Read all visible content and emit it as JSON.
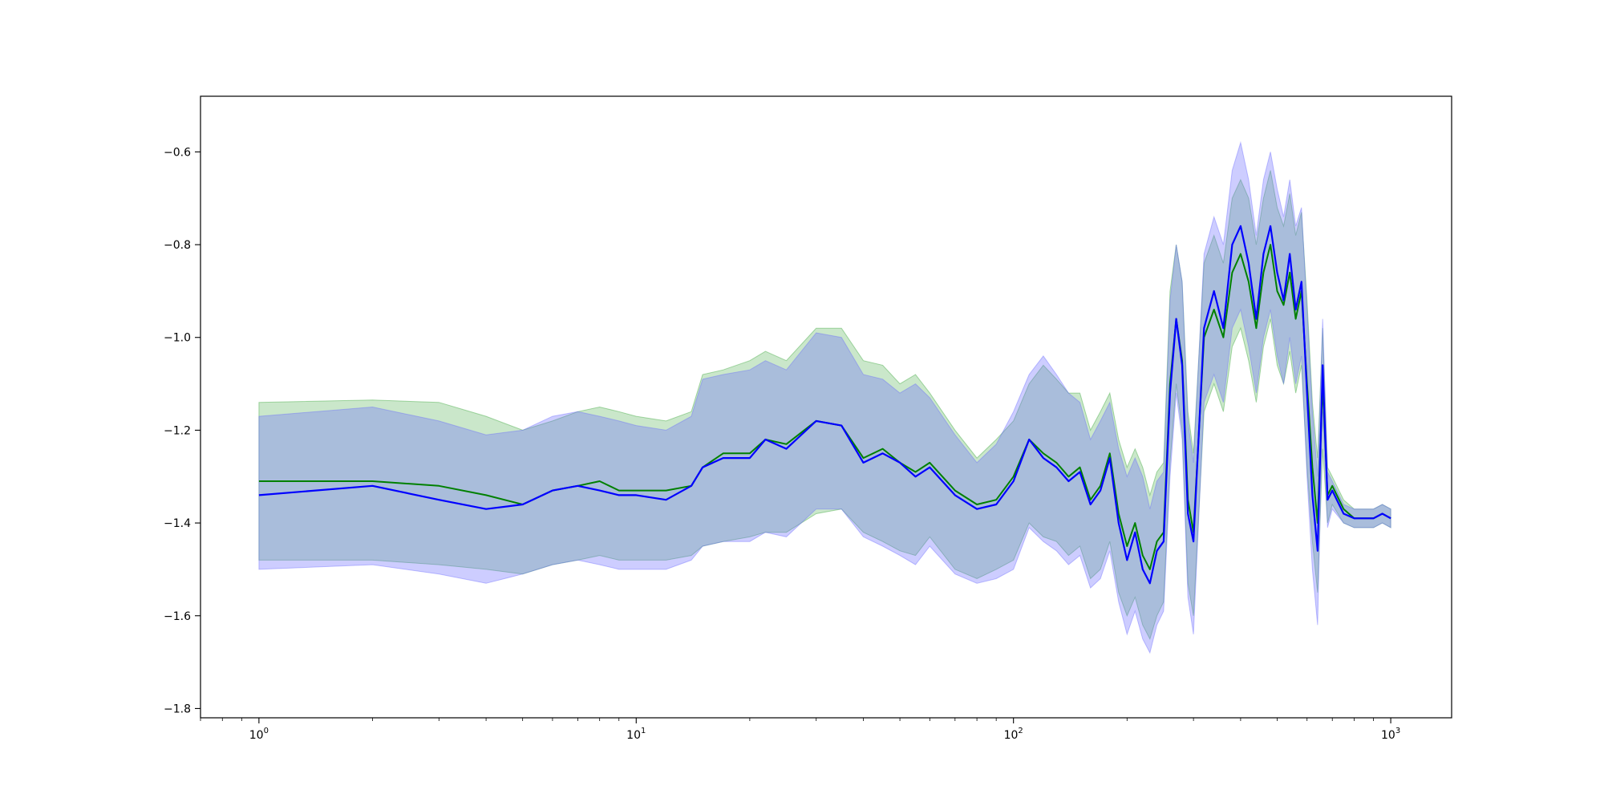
{
  "chart_data": {
    "type": "line",
    "title": "",
    "xlabel": "",
    "ylabel": "",
    "xscale": "log",
    "xlim": [
      0.7,
      1450
    ],
    "ylim": [
      -1.82,
      -0.48
    ],
    "grid": false,
    "legend": "none",
    "x_ticks": [
      {
        "value": 1,
        "base": "10",
        "exp": "0"
      },
      {
        "value": 10,
        "base": "10",
        "exp": "1"
      },
      {
        "value": 100,
        "base": "10",
        "exp": "2"
      },
      {
        "value": 1000,
        "base": "10",
        "exp": "3"
      }
    ],
    "y_ticks": [
      {
        "value": -0.6,
        "label": "−0.6"
      },
      {
        "value": -0.8,
        "label": "−0.8"
      },
      {
        "value": -1.0,
        "label": "−1.0"
      },
      {
        "value": -1.2,
        "label": "−1.2"
      },
      {
        "value": -1.4,
        "label": "−1.4"
      },
      {
        "value": -1.6,
        "label": "−1.6"
      },
      {
        "value": -1.8,
        "label": "−1.8"
      }
    ],
    "x": [
      1,
      2,
      3,
      4,
      5,
      6,
      7,
      8,
      9,
      10,
      12,
      14,
      15,
      17,
      20,
      22,
      25,
      30,
      35,
      40,
      45,
      50,
      55,
      60,
      70,
      80,
      90,
      100,
      110,
      120,
      130,
      140,
      150,
      160,
      170,
      180,
      190,
      200,
      210,
      220,
      230,
      240,
      250,
      260,
      270,
      280,
      290,
      300,
      320,
      340,
      360,
      380,
      400,
      420,
      440,
      460,
      480,
      500,
      520,
      540,
      560,
      580,
      600,
      620,
      640,
      660,
      680,
      700,
      750,
      800,
      850,
      900,
      950,
      1000
    ],
    "series": [
      {
        "color": "#008000",
        "band_color": "#2ca02c",
        "values": [
          -1.31,
          -1.31,
          -1.32,
          -1.34,
          -1.36,
          -1.33,
          -1.32,
          -1.31,
          -1.33,
          -1.33,
          -1.33,
          -1.32,
          -1.28,
          -1.25,
          -1.25,
          -1.22,
          -1.23,
          -1.18,
          -1.19,
          -1.26,
          -1.24,
          -1.27,
          -1.29,
          -1.27,
          -1.33,
          -1.36,
          -1.35,
          -1.3,
          -1.22,
          -1.25,
          -1.27,
          -1.3,
          -1.28,
          -1.35,
          -1.32,
          -1.25,
          -1.38,
          -1.45,
          -1.4,
          -1.47,
          -1.5,
          -1.44,
          -1.42,
          -1.1,
          -0.96,
          -1.05,
          -1.35,
          -1.42,
          -1.0,
          -0.94,
          -1.0,
          -0.86,
          -0.82,
          -0.88,
          -0.98,
          -0.86,
          -0.8,
          -0.9,
          -0.93,
          -0.86,
          -0.96,
          -0.9,
          -1.1,
          -1.28,
          -1.4,
          -1.1,
          -1.34,
          -1.32,
          -1.37,
          -1.39,
          -1.39,
          -1.39,
          -1.38,
          -1.39
        ],
        "upper": [
          -1.14,
          -1.135,
          -1.14,
          -1.17,
          -1.2,
          -1.18,
          -1.16,
          -1.15,
          -1.16,
          -1.17,
          -1.18,
          -1.16,
          -1.08,
          -1.07,
          -1.05,
          -1.03,
          -1.05,
          -0.98,
          -0.98,
          -1.05,
          -1.06,
          -1.1,
          -1.08,
          -1.12,
          -1.2,
          -1.26,
          -1.22,
          -1.18,
          -1.1,
          -1.06,
          -1.09,
          -1.12,
          -1.12,
          -1.2,
          -1.16,
          -1.12,
          -1.22,
          -1.28,
          -1.24,
          -1.28,
          -1.34,
          -1.29,
          -1.27,
          -0.9,
          -0.8,
          -0.88,
          -1.16,
          -1.25,
          -0.84,
          -0.78,
          -0.84,
          -0.7,
          -0.66,
          -0.7,
          -0.8,
          -0.7,
          -0.64,
          -0.72,
          -0.76,
          -0.69,
          -0.78,
          -0.73,
          -0.92,
          -1.14,
          -1.26,
          -0.98,
          -1.28,
          -1.3,
          -1.35,
          -1.37,
          -1.37,
          -1.37,
          -1.36,
          -1.37
        ],
        "lower": [
          -1.48,
          -1.48,
          -1.49,
          -1.5,
          -1.51,
          -1.49,
          -1.48,
          -1.47,
          -1.48,
          -1.48,
          -1.48,
          -1.47,
          -1.45,
          -1.44,
          -1.43,
          -1.42,
          -1.42,
          -1.38,
          -1.37,
          -1.42,
          -1.44,
          -1.46,
          -1.47,
          -1.43,
          -1.5,
          -1.52,
          -1.5,
          -1.48,
          -1.4,
          -1.43,
          -1.44,
          -1.47,
          -1.45,
          -1.52,
          -1.5,
          -1.44,
          -1.55,
          -1.6,
          -1.56,
          -1.62,
          -1.65,
          -1.6,
          -1.57,
          -1.27,
          -1.1,
          -1.2,
          -1.53,
          -1.6,
          -1.16,
          -1.1,
          -1.16,
          -1.02,
          -0.98,
          -1.05,
          -1.14,
          -1.02,
          -0.96,
          -1.06,
          -1.1,
          -1.03,
          -1.12,
          -1.06,
          -1.28,
          -1.44,
          -1.55,
          -1.24,
          -1.4,
          -1.36,
          -1.4,
          -1.41,
          -1.41,
          -1.41,
          -1.4,
          -1.41
        ]
      },
      {
        "color": "#0000ff",
        "band_color": "#6666ff",
        "values": [
          -1.34,
          -1.32,
          -1.35,
          -1.37,
          -1.36,
          -1.33,
          -1.32,
          -1.33,
          -1.34,
          -1.34,
          -1.35,
          -1.32,
          -1.28,
          -1.26,
          -1.26,
          -1.22,
          -1.24,
          -1.18,
          -1.19,
          -1.27,
          -1.25,
          -1.27,
          -1.3,
          -1.28,
          -1.34,
          -1.37,
          -1.36,
          -1.31,
          -1.22,
          -1.26,
          -1.28,
          -1.31,
          -1.29,
          -1.36,
          -1.33,
          -1.26,
          -1.4,
          -1.48,
          -1.42,
          -1.5,
          -1.53,
          -1.46,
          -1.44,
          -1.12,
          -0.96,
          -1.06,
          -1.38,
          -1.44,
          -0.98,
          -0.9,
          -0.98,
          -0.8,
          -0.76,
          -0.84,
          -0.96,
          -0.82,
          -0.76,
          -0.86,
          -0.92,
          -0.82,
          -0.94,
          -0.88,
          -1.12,
          -1.34,
          -1.46,
          -1.06,
          -1.35,
          -1.33,
          -1.38,
          -1.39,
          -1.39,
          -1.39,
          -1.38,
          -1.39
        ],
        "upper": [
          -1.17,
          -1.15,
          -1.18,
          -1.21,
          -1.2,
          -1.17,
          -1.16,
          -1.17,
          -1.18,
          -1.19,
          -1.2,
          -1.17,
          -1.09,
          -1.08,
          -1.07,
          -1.05,
          -1.07,
          -0.99,
          -1.0,
          -1.08,
          -1.09,
          -1.12,
          -1.1,
          -1.13,
          -1.21,
          -1.27,
          -1.23,
          -1.16,
          -1.08,
          -1.04,
          -1.08,
          -1.12,
          -1.14,
          -1.22,
          -1.18,
          -1.14,
          -1.24,
          -1.3,
          -1.26,
          -1.3,
          -1.37,
          -1.31,
          -1.29,
          -0.92,
          -0.8,
          -0.88,
          -1.18,
          -1.27,
          -0.82,
          -0.74,
          -0.8,
          -0.64,
          -0.58,
          -0.66,
          -0.78,
          -0.66,
          -0.6,
          -0.68,
          -0.74,
          -0.66,
          -0.76,
          -0.72,
          -0.94,
          -1.16,
          -1.3,
          -0.96,
          -1.29,
          -1.31,
          -1.36,
          -1.37,
          -1.37,
          -1.37,
          -1.36,
          -1.37
        ],
        "lower": [
          -1.5,
          -1.49,
          -1.51,
          -1.53,
          -1.51,
          -1.49,
          -1.48,
          -1.49,
          -1.5,
          -1.5,
          -1.5,
          -1.48,
          -1.45,
          -1.44,
          -1.44,
          -1.42,
          -1.43,
          -1.37,
          -1.37,
          -1.43,
          -1.45,
          -1.47,
          -1.49,
          -1.45,
          -1.51,
          -1.53,
          -1.52,
          -1.5,
          -1.41,
          -1.44,
          -1.46,
          -1.49,
          -1.47,
          -1.54,
          -1.52,
          -1.46,
          -1.57,
          -1.64,
          -1.59,
          -1.65,
          -1.68,
          -1.62,
          -1.59,
          -1.3,
          -1.12,
          -1.22,
          -1.56,
          -1.64,
          -1.14,
          -1.08,
          -1.14,
          -0.98,
          -0.94,
          -1.02,
          -1.12,
          -1.0,
          -0.94,
          -1.04,
          -1.1,
          -1.0,
          -1.1,
          -1.04,
          -1.3,
          -1.5,
          -1.62,
          -1.16,
          -1.41,
          -1.37,
          -1.4,
          -1.41,
          -1.41,
          -1.41,
          -1.4,
          -1.41
        ]
      }
    ]
  }
}
